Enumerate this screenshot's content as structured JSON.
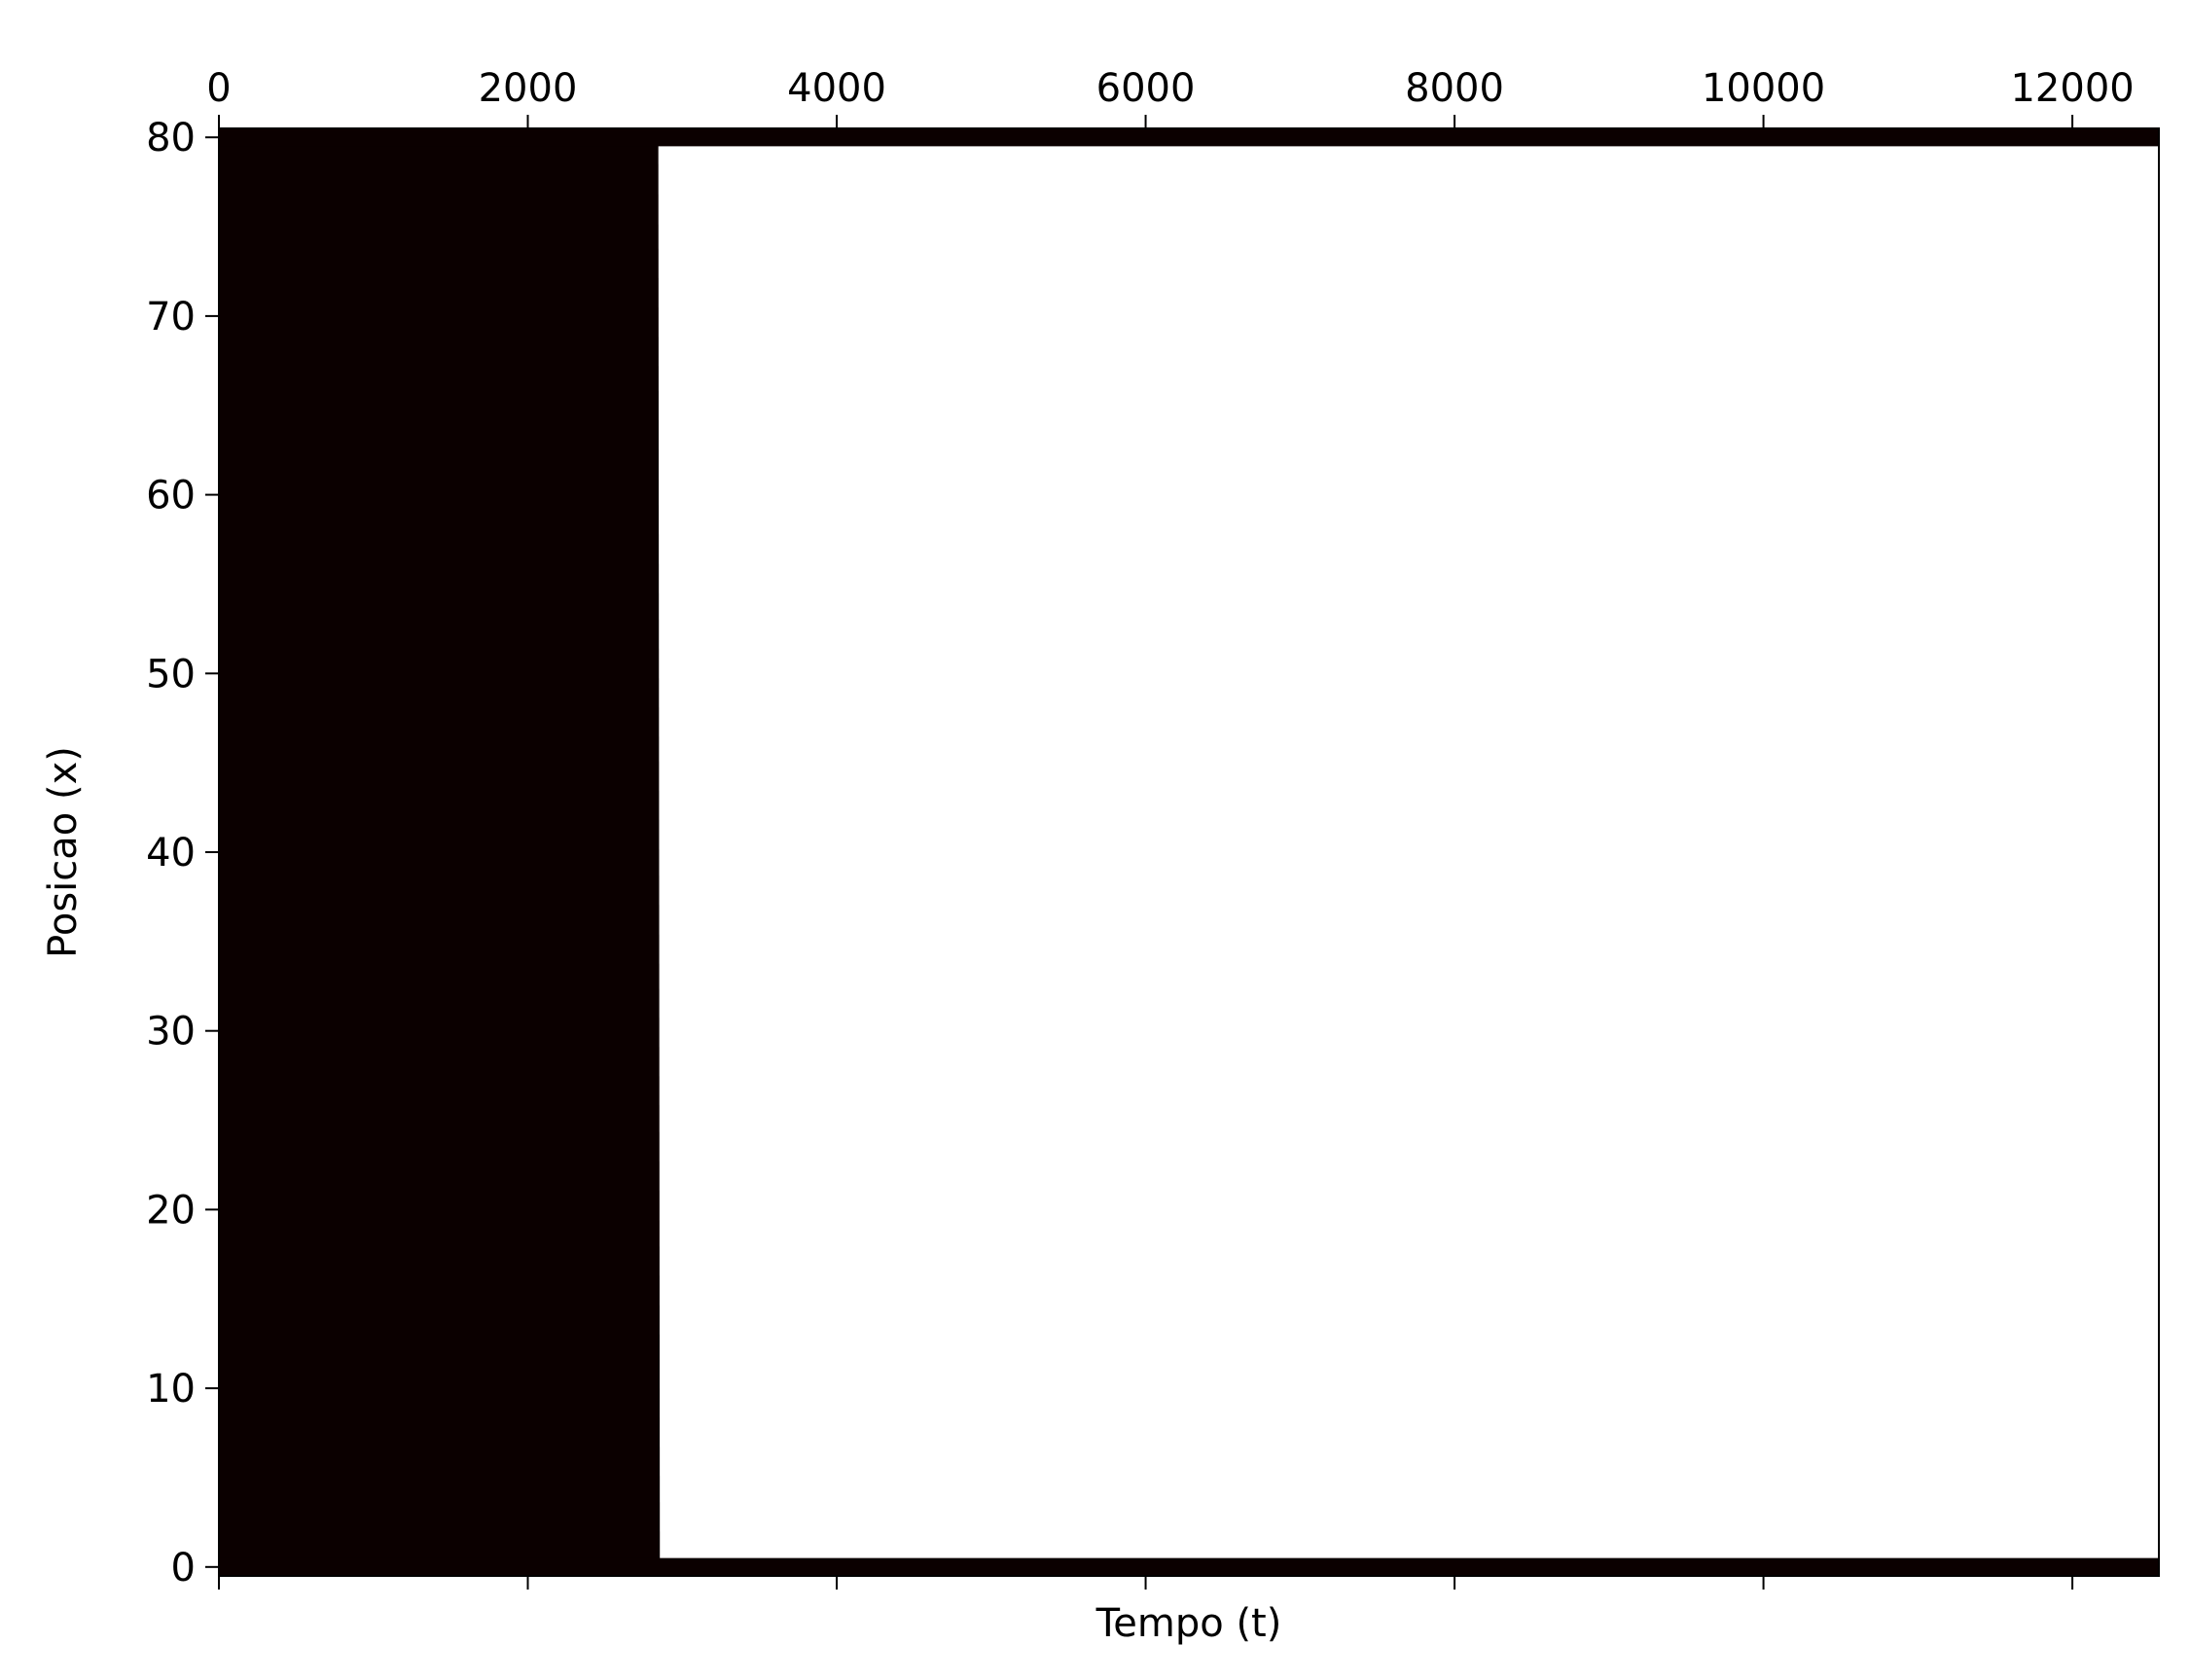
{
  "chart_data": {
    "type": "heatmap",
    "title": "",
    "xlabel": "Tempo (t)",
    "ylabel": "Posicao (x)",
    "xlim": [
      0,
      12560
    ],
    "ylim": [
      -0.5,
      80.5
    ],
    "x_ticks": [
      0,
      2000,
      4000,
      6000,
      8000,
      10000,
      12000
    ],
    "x_tick_labels": [
      "0",
      "2000",
      "4000",
      "6000",
      "8000",
      "10000",
      "12000"
    ],
    "x_tick_label_position": "top",
    "y_ticks": [
      0,
      10,
      20,
      30,
      40,
      50,
      60,
      70,
      80
    ],
    "y_tick_labels": [
      "0",
      "10",
      "20",
      "30",
      "40",
      "50",
      "60",
      "70",
      "80"
    ],
    "grid": false,
    "legend": "none",
    "colors": {
      "occupied": "#0b0000",
      "empty": "#ffffff"
    },
    "regions": [
      {
        "name": "filled-block",
        "value": 1,
        "t_start": 0,
        "t_end_at_bottom": 2855,
        "t_end_at_top": 2845,
        "x_start": -0.5,
        "x_end": 80.5
      },
      {
        "name": "bottom-boundary-band",
        "value": 1,
        "t_start": 0,
        "t_end": 12560,
        "x_start": -0.5,
        "x_end": 0.5
      },
      {
        "name": "top-boundary-band",
        "value": 1,
        "t_start": 0,
        "t_end": 12560,
        "x_start": 79.5,
        "x_end": 80.5
      }
    ]
  }
}
